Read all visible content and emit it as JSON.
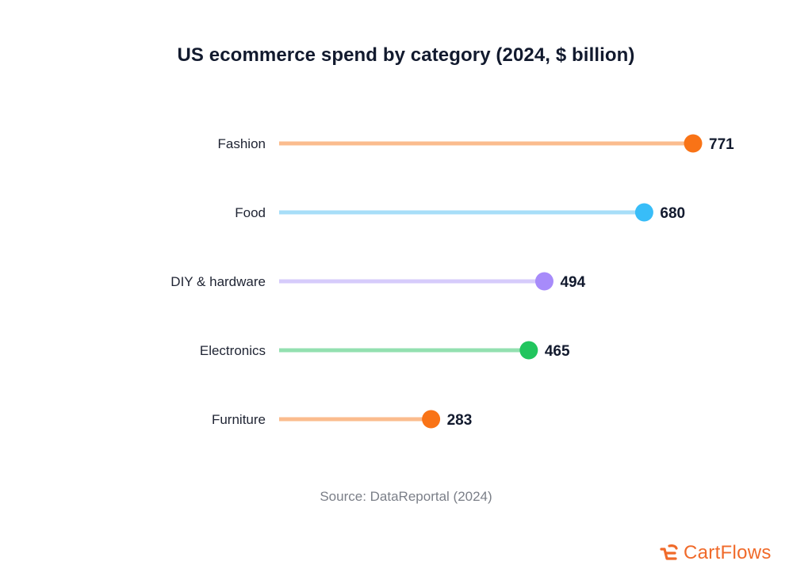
{
  "header": {
    "title": "US ecommerce spend by category (2024, $ billion)"
  },
  "footer": {
    "source": "Source: DataReportal (2024)",
    "brand_name": "CartFlows",
    "brand_icon": "cartflows-logo-icon",
    "brand_color": "#f06a2a"
  },
  "chart_data": {
    "type": "lollipop",
    "title": "US ecommerce spend by category (2024, $ billion)",
    "categories": [
      "Fashion",
      "Food",
      "DIY & hardware",
      "Electronics",
      "Furniture"
    ],
    "values": [
      771,
      680,
      494,
      465,
      283
    ],
    "point_colors": [
      "#f97316",
      "#38bdf8",
      "#a78bfa",
      "#22c55e",
      "#f97316"
    ],
    "line_colors": [
      "#fbbc8e",
      "#a7def8",
      "#d6cbfb",
      "#93e0b0",
      "#fbbc8e"
    ],
    "value_labels": [
      "771",
      "680",
      "494",
      "465",
      "283"
    ],
    "xlabel": "",
    "ylabel": "",
    "grid": false,
    "legend": "none"
  }
}
